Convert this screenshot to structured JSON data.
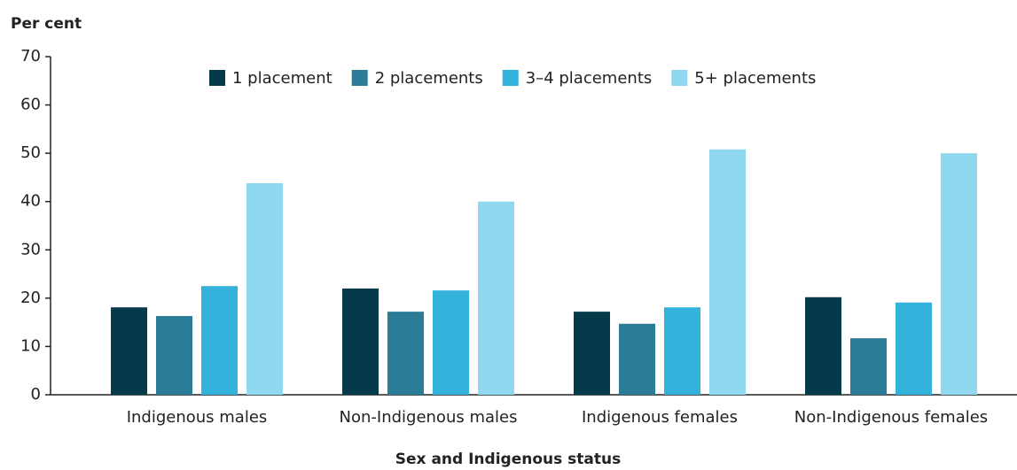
{
  "chart_data": {
    "type": "bar",
    "y_label": "Per cent",
    "x_label": "Sex and Indigenous status",
    "categories": [
      "Indigenous males",
      "Non-Indigenous males",
      "Indigenous females",
      "Non-Indigenous females"
    ],
    "series": [
      {
        "name": "1 placement",
        "color": "#053a4b",
        "values": [
          18.1,
          22.0,
          17.2,
          20.2
        ]
      },
      {
        "name": "2 placements",
        "color": "#2b7c96",
        "values": [
          16.3,
          17.2,
          14.7,
          11.7
        ]
      },
      {
        "name": "3–4 placements",
        "color": "#33b3dc",
        "values": [
          22.5,
          21.6,
          18.1,
          19.1
        ]
      },
      {
        "name": "5+ placements",
        "color": "#90d8f0",
        "values": [
          43.8,
          40.0,
          50.8,
          50.0
        ]
      }
    ],
    "ylim": [
      0,
      70
    ],
    "yticks": [
      0,
      10,
      20,
      30,
      40,
      50,
      60,
      70
    ],
    "grid": false
  }
}
